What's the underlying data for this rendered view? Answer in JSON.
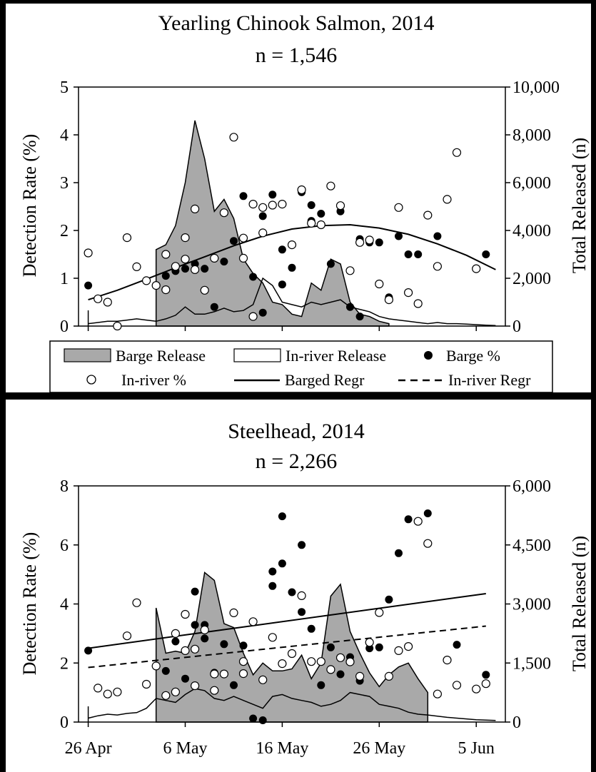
{
  "legend": {
    "items": [
      {
        "label": "Barge Release",
        "symbol": "area-gray"
      },
      {
        "label": "In-river Release",
        "symbol": "area-white"
      },
      {
        "label": "Barge %",
        "symbol": "filled-circle"
      },
      {
        "label": "In-river %",
        "symbol": "open-circle"
      },
      {
        "label": "Barged Regr",
        "symbol": "solid-line"
      },
      {
        "label": "In-river Regr",
        "symbol": "dashed-line"
      }
    ]
  },
  "x_tick_labels": [
    "26 Apr",
    "6 May",
    "16 May",
    "26 May",
    "5 Jun"
  ],
  "colors": {
    "background": "#000000",
    "panel": "#ffffff",
    "barge_fill": "#a9a9a9",
    "line": "#000000"
  },
  "chart_data": [
    {
      "type": "scatter",
      "title": "Yearling Chinook Salmon, 2014",
      "subtitle": "n = 1,546",
      "ylabel": "Detection Rate (%)",
      "y2label": "Total Released (n)",
      "x_ticks": [
        "2014-04-26",
        "2014-05-06",
        "2014-05-16",
        "2014-05-26",
        "2014-06-05"
      ],
      "x_tick_labels": [
        "26 Apr",
        "6 May",
        "16 May",
        "26 May",
        "5 Jun"
      ],
      "xlim": [
        "2014-04-25",
        "2014-06-08"
      ],
      "ylim": [
        0,
        5
      ],
      "yticks": [
        0,
        1,
        2,
        3,
        4,
        5
      ],
      "y2lim": [
        0,
        10000
      ],
      "y2ticks": [
        0,
        2000,
        4000,
        6000,
        8000,
        10000
      ],
      "y2tick_labels": [
        "0",
        "2,000",
        "4,000",
        "6,000",
        "8,000",
        "10,000"
      ],
      "grid": false,
      "legend": "below",
      "series": [
        {
          "name": "Barge Release",
          "kind": "area",
          "axis": "right",
          "x": [
            "2014-05-03",
            "2014-05-04",
            "2014-05-05",
            "2014-05-06",
            "2014-05-07",
            "2014-05-08",
            "2014-05-09",
            "2014-05-10",
            "2014-05-11",
            "2014-05-12",
            "2014-05-13",
            "2014-05-14",
            "2014-05-15",
            "2014-05-16",
            "2014-05-17",
            "2014-05-18",
            "2014-05-19",
            "2014-05-20",
            "2014-05-21",
            "2014-05-22",
            "2014-05-23",
            "2014-05-24",
            "2014-05-25",
            "2014-05-26",
            "2014-05-27"
          ],
          "y": [
            3200,
            3400,
            4200,
            6000,
            8600,
            7000,
            4800,
            5300,
            4500,
            2800,
            2200,
            1800,
            1000,
            900,
            500,
            400,
            1800,
            1500,
            2800,
            2600,
            1000,
            500,
            400,
            200,
            100
          ]
        },
        {
          "name": "In-river Release",
          "kind": "area",
          "axis": "right",
          "x": [
            "2014-04-26",
            "2014-04-27",
            "2014-04-28",
            "2014-04-29",
            "2014-04-30",
            "2014-05-01",
            "2014-05-02",
            "2014-05-03",
            "2014-05-04",
            "2014-05-05",
            "2014-05-06",
            "2014-05-07",
            "2014-05-08",
            "2014-05-09",
            "2014-05-10",
            "2014-05-11",
            "2014-05-12",
            "2014-05-13",
            "2014-05-14",
            "2014-05-15",
            "2014-05-16",
            "2014-05-17",
            "2014-05-18",
            "2014-05-19",
            "2014-05-20",
            "2014-05-21",
            "2014-05-22",
            "2014-05-23",
            "2014-05-24",
            "2014-05-25",
            "2014-05-26",
            "2014-05-27",
            "2014-05-28",
            "2014-05-29",
            "2014-05-30",
            "2014-05-31",
            "2014-06-01",
            "2014-06-02",
            "2014-06-03",
            "2014-06-04",
            "2014-06-05",
            "2014-06-06",
            "2014-06-07"
          ],
          "y": [
            100,
            150,
            200,
            200,
            250,
            300,
            250,
            200,
            300,
            450,
            800,
            500,
            500,
            600,
            750,
            600,
            650,
            900,
            2000,
            1700,
            1000,
            900,
            800,
            1000,
            900,
            1000,
            1100,
            800,
            700,
            600,
            400,
            300,
            250,
            200,
            150,
            100,
            150,
            100,
            100,
            80,
            60,
            40,
            20
          ]
        },
        {
          "name": "Barge %",
          "kind": "points",
          "marker": "filled",
          "axis": "left",
          "x": [
            "2014-04-26",
            "2014-05-04",
            "2014-05-05",
            "2014-05-06",
            "2014-05-07",
            "2014-05-08",
            "2014-05-09",
            "2014-05-10",
            "2014-05-11",
            "2014-05-12",
            "2014-05-13",
            "2014-05-14",
            "2014-05-14",
            "2014-05-15",
            "2014-05-16",
            "2014-05-16",
            "2014-05-17",
            "2014-05-18",
            "2014-05-19",
            "2014-05-19",
            "2014-05-20",
            "2014-05-21",
            "2014-05-22",
            "2014-05-23",
            "2014-05-24",
            "2014-05-24",
            "2014-05-25",
            "2014-05-26",
            "2014-05-27",
            "2014-05-28",
            "2014-05-29",
            "2014-05-30",
            "2014-06-01",
            "2014-06-06"
          ],
          "y": [
            0.85,
            1.05,
            1.15,
            1.2,
            1.3,
            1.2,
            0.4,
            1.35,
            1.78,
            2.72,
            1.03,
            2.3,
            0.28,
            2.75,
            1.6,
            0.87,
            1.22,
            2.8,
            2.53,
            2.2,
            2.35,
            1.3,
            2.4,
            0.4,
            0.2,
            1.82,
            1.75,
            1.75,
            0.6,
            1.88,
            1.5,
            1.5,
            1.88,
            1.5
          ]
        },
        {
          "name": "In-river %",
          "kind": "points",
          "marker": "open",
          "axis": "left",
          "x": [
            "2014-04-26",
            "2014-04-27",
            "2014-04-28",
            "2014-04-29",
            "2014-04-30",
            "2014-05-01",
            "2014-05-02",
            "2014-05-03",
            "2014-05-04",
            "2014-05-04",
            "2014-05-05",
            "2014-05-06",
            "2014-05-06",
            "2014-05-07",
            "2014-05-07",
            "2014-05-08",
            "2014-05-09",
            "2014-05-10",
            "2014-05-11",
            "2014-05-12",
            "2014-05-12",
            "2014-05-13",
            "2014-05-13",
            "2014-05-14",
            "2014-05-14",
            "2014-05-15",
            "2014-05-16",
            "2014-05-17",
            "2014-05-18",
            "2014-05-19",
            "2014-05-20",
            "2014-05-21",
            "2014-05-22",
            "2014-05-23",
            "2014-05-24",
            "2014-05-25",
            "2014-05-26",
            "2014-05-27",
            "2014-05-28",
            "2014-05-29",
            "2014-05-30",
            "2014-05-31",
            "2014-06-01",
            "2014-06-02",
            "2014-06-03",
            "2014-06-05"
          ],
          "y": [
            1.53,
            0.57,
            0.5,
            0,
            1.85,
            1.24,
            0.95,
            0.85,
            1.5,
            0.76,
            1.25,
            1.85,
            1.4,
            2.45,
            1.18,
            0.75,
            1.42,
            2.37,
            3.95,
            1.84,
            1.42,
            2.55,
            0.2,
            2.48,
            1.95,
            2.53,
            2.55,
            1.7,
            2.85,
            2.15,
            2.12,
            2.93,
            2.52,
            1.16,
            1.75,
            1.8,
            0.88,
            0.55,
            2.48,
            0.7,
            0.47,
            2.32,
            1.25,
            2.65,
            3.63,
            1.2
          ]
        },
        {
          "name": "Barged Regr",
          "kind": "line",
          "axis": "left",
          "x": [
            "2014-04-26",
            "2014-04-29",
            "2014-05-02",
            "2014-05-05",
            "2014-05-08",
            "2014-05-11",
            "2014-05-14",
            "2014-05-17",
            "2014-05-20",
            "2014-05-23",
            "2014-05-26",
            "2014-05-29",
            "2014-06-01",
            "2014-06-04",
            "2014-06-07"
          ],
          "y": [
            0.55,
            0.75,
            0.98,
            1.22,
            1.45,
            1.68,
            1.88,
            2.03,
            2.1,
            2.12,
            2.05,
            1.92,
            1.72,
            1.48,
            1.18
          ]
        }
      ]
    },
    {
      "type": "scatter",
      "title": "Steelhead, 2014",
      "subtitle": "n = 2,266",
      "ylabel": "Detection Rate (%)",
      "y2label": "Total Released (n)",
      "x_ticks": [
        "2014-04-26",
        "2014-05-06",
        "2014-05-16",
        "2014-05-26",
        "2014-06-05"
      ],
      "x_tick_labels": [
        "26 Apr",
        "6 May",
        "16 May",
        "26 May",
        "5 Jun"
      ],
      "xlim": [
        "2014-04-25",
        "2014-06-08"
      ],
      "ylim": [
        0,
        8
      ],
      "yticks": [
        0,
        2,
        4,
        6,
        8
      ],
      "y2lim": [
        0,
        6000
      ],
      "y2ticks": [
        0,
        1500,
        3000,
        4500,
        6000
      ],
      "y2tick_labels": [
        "0",
        "1,500",
        "3,000",
        "4,500",
        "6,000"
      ],
      "grid": false,
      "series": [
        {
          "name": "Barge Release",
          "kind": "area",
          "axis": "right",
          "x": [
            "2014-05-03",
            "2014-05-04",
            "2014-05-05",
            "2014-05-06",
            "2014-05-07",
            "2014-05-08",
            "2014-05-09",
            "2014-05-10",
            "2014-05-11",
            "2014-05-12",
            "2014-05-13",
            "2014-05-14",
            "2014-05-15",
            "2014-05-16",
            "2014-05-17",
            "2014-05-18",
            "2014-05-19",
            "2014-05-20",
            "2014-05-21",
            "2014-05-22",
            "2014-05-23",
            "2014-05-24",
            "2014-05-25",
            "2014-05-26",
            "2014-05-27",
            "2014-05-28",
            "2014-05-29",
            "2014-05-30",
            "2014-05-31"
          ],
          "y": [
            2900,
            1750,
            1800,
            1750,
            2300,
            3800,
            3600,
            2500,
            2400,
            1750,
            1200,
            1500,
            1300,
            1300,
            1350,
            1700,
            1100,
            1500,
            3200,
            3500,
            2300,
            1750,
            1250,
            900,
            1200,
            1400,
            1500,
            1100,
            750
          ]
        },
        {
          "name": "In-river Release",
          "kind": "area",
          "axis": "right",
          "x": [
            "2014-04-26",
            "2014-04-27",
            "2014-04-28",
            "2014-04-29",
            "2014-04-30",
            "2014-05-01",
            "2014-05-02",
            "2014-05-03",
            "2014-05-04",
            "2014-05-05",
            "2014-05-06",
            "2014-05-07",
            "2014-05-08",
            "2014-05-09",
            "2014-05-10",
            "2014-05-11",
            "2014-05-12",
            "2014-05-13",
            "2014-05-14",
            "2014-05-15",
            "2014-05-16",
            "2014-05-17",
            "2014-05-18",
            "2014-05-19",
            "2014-05-20",
            "2014-05-21",
            "2014-05-22",
            "2014-05-23",
            "2014-05-24",
            "2014-05-25",
            "2014-05-26",
            "2014-05-27",
            "2014-05-28",
            "2014-05-29",
            "2014-05-30",
            "2014-05-31",
            "2014-06-01",
            "2014-06-02",
            "2014-06-03",
            "2014-06-04",
            "2014-06-05",
            "2014-06-06",
            "2014-06-07"
          ],
          "y": [
            100,
            160,
            200,
            180,
            220,
            240,
            350,
            600,
            550,
            500,
            700,
            850,
            800,
            600,
            550,
            650,
            550,
            450,
            350,
            650,
            700,
            600,
            550,
            500,
            400,
            450,
            550,
            750,
            700,
            650,
            450,
            400,
            350,
            250,
            200,
            180,
            150,
            120,
            100,
            80,
            60,
            50,
            40
          ]
        },
        {
          "name": "Barge %",
          "kind": "points",
          "marker": "filled",
          "axis": "left",
          "x": [
            "2014-04-26",
            "2014-05-04",
            "2014-05-05",
            "2014-05-06",
            "2014-05-07",
            "2014-05-07",
            "2014-05-08",
            "2014-05-08",
            "2014-05-09",
            "2014-05-10",
            "2014-05-11",
            "2014-05-12",
            "2014-05-13",
            "2014-05-14",
            "2014-05-15",
            "2014-05-15",
            "2014-05-16",
            "2014-05-16",
            "2014-05-17",
            "2014-05-18",
            "2014-05-18",
            "2014-05-19",
            "2014-05-20",
            "2014-05-21",
            "2014-05-22",
            "2014-05-23",
            "2014-05-24",
            "2014-05-25",
            "2014-05-26",
            "2014-05-27",
            "2014-05-28",
            "2014-05-29",
            "2014-05-31",
            "2014-06-03",
            "2014-06-06"
          ],
          "y": [
            2.42,
            1.73,
            2.73,
            1.47,
            3.29,
            4.42,
            3.29,
            2.83,
            1.67,
            2.64,
            1.25,
            2.59,
            0.12,
            0.06,
            4.61,
            5.1,
            6.97,
            5.37,
            4.4,
            6.0,
            3.73,
            3.16,
            1.25,
            2.53,
            1.62,
            2.2,
            1.4,
            2.5,
            2.53,
            4.15,
            5.72,
            6.87,
            7.07,
            2.62,
            1.6
          ]
        },
        {
          "name": "In-river %",
          "kind": "points",
          "marker": "open",
          "axis": "left",
          "x": [
            "2014-04-27",
            "2014-04-28",
            "2014-04-29",
            "2014-04-30",
            "2014-05-01",
            "2014-05-02",
            "2014-05-03",
            "2014-05-04",
            "2014-05-05",
            "2014-05-05",
            "2014-05-06",
            "2014-05-06",
            "2014-05-07",
            "2014-05-07",
            "2014-05-08",
            "2014-05-09",
            "2014-05-09",
            "2014-05-10",
            "2014-05-11",
            "2014-05-12",
            "2014-05-12",
            "2014-05-13",
            "2014-05-14",
            "2014-05-15",
            "2014-05-16",
            "2014-05-17",
            "2014-05-18",
            "2014-05-19",
            "2014-05-20",
            "2014-05-21",
            "2014-05-22",
            "2014-05-23",
            "2014-05-24",
            "2014-05-25",
            "2014-05-26",
            "2014-05-27",
            "2014-05-28",
            "2014-05-29",
            "2014-05-30",
            "2014-05-31",
            "2014-06-01",
            "2014-06-02",
            "2014-06-03",
            "2014-06-05",
            "2014-06-06"
          ],
          "y": [
            1.15,
            0.95,
            1.02,
            2.92,
            4.04,
            1.28,
            1.9,
            0.9,
            1.02,
            3.0,
            3.65,
            2.42,
            1.23,
            2.47,
            3.12,
            1.07,
            1.63,
            1.63,
            3.7,
            2.05,
            1.64,
            3.4,
            1.43,
            2.87,
            1.98,
            2.32,
            4.28,
            2.05,
            2.05,
            1.78,
            2.18,
            2.04,
            1.55,
            2.7,
            3.71,
            1.55,
            2.42,
            2.56,
            6.8,
            6.05,
            0.95,
            2.1,
            1.25,
            1.12,
            1.3
          ]
        },
        {
          "name": "Barged Regr",
          "kind": "line",
          "axis": "left",
          "x": [
            "2014-04-26",
            "2014-06-06"
          ],
          "y": [
            2.5,
            4.35
          ]
        },
        {
          "name": "In-river Regr",
          "kind": "line",
          "style": "dashed",
          "axis": "left",
          "x": [
            "2014-04-26",
            "2014-06-06"
          ],
          "y": [
            1.85,
            3.25
          ]
        }
      ]
    }
  ]
}
